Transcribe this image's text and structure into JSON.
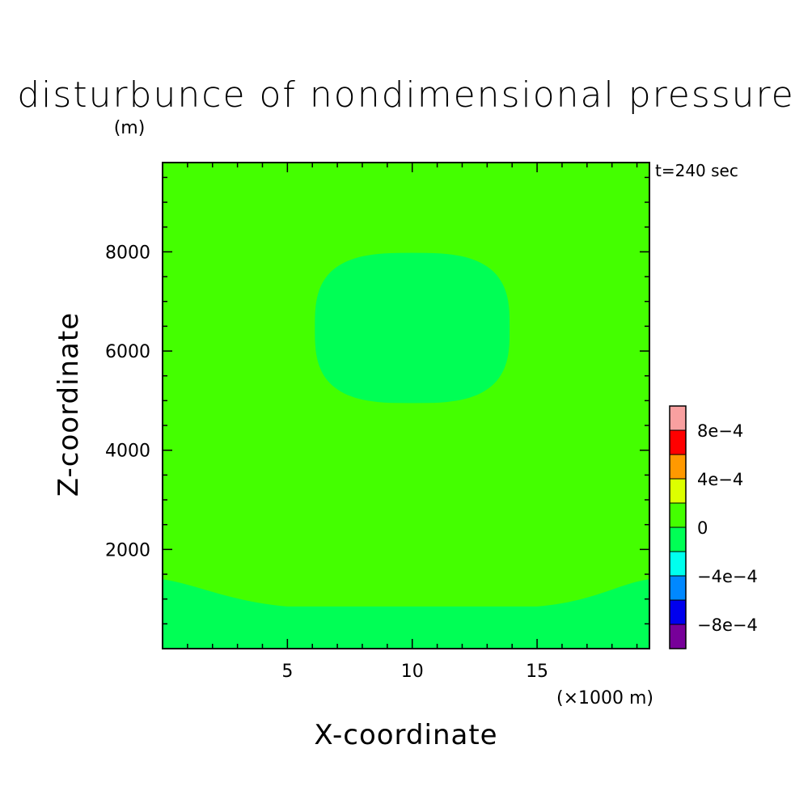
{
  "chart_data": {
    "type": "heatmap",
    "title": "disturbunce of nondimensional pressure",
    "y_unit": "(m)",
    "time_label": "t=240 sec",
    "xlabel": "X-coordinate",
    "x_unit": "(×1000 m)",
    "ylabel": "Z-coordinate",
    "xlim": [
      0,
      19.5
    ],
    "ylim": [
      0,
      9800
    ],
    "x_ticks": [
      5,
      10,
      15
    ],
    "y_ticks": [
      2000,
      4000,
      6000,
      8000
    ],
    "x_tick_labels": [
      "5",
      "10",
      "15"
    ],
    "y_tick_labels": [
      "2000",
      "4000",
      "6000",
      "8000"
    ],
    "background_level_color": "#44ff00",
    "regions": [
      {
        "name": "upper-negative-region",
        "level_range": [
          -0.0002,
          0
        ],
        "color": "#00ff55",
        "center": [
          10,
          6500
        ],
        "x_extent": [
          6.1,
          13.9
        ],
        "y_extent": [
          4950,
          7980
        ]
      },
      {
        "name": "lower-negative-region",
        "level_range": [
          -0.0002,
          0
        ],
        "color": "#00ff55",
        "description": "band along bottom",
        "y_top_center": 850,
        "y_top_edges": 1400
      }
    ],
    "colorbar": {
      "levels": [
        -0.001,
        -0.0008,
        -0.0006,
        -0.0004,
        -0.0002,
        0,
        0.0002,
        0.0004,
        0.0006,
        0.0008,
        0.001
      ],
      "colors": [
        "#770099",
        "#0000ee",
        "#0088ff",
        "#00ffee",
        "#00ff55",
        "#44ff00",
        "#ddff00",
        "#ff9900",
        "#ff0000",
        "#f9a0a0"
      ],
      "labels": [
        {
          "value": -0.0008,
          "text": "−8e−4"
        },
        {
          "value": -0.0004,
          "text": "−4e−4"
        },
        {
          "value": 0,
          "text": "0"
        },
        {
          "value": 0.0004,
          "text": "4e−4"
        },
        {
          "value": 0.0008,
          "text": "8e−4"
        }
      ]
    }
  }
}
